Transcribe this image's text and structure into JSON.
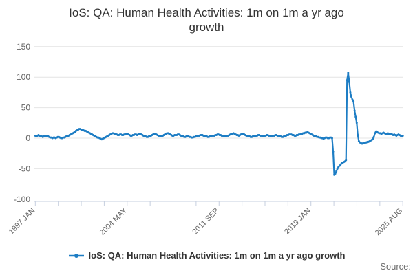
{
  "title_lines": [
    "IoS: QA: Human Health Activities: 1m on 1m a yr ago",
    "growth"
  ],
  "legend": {
    "series_label": "IoS: QA: Human Health Activities: 1m on 1m a yr ago growth"
  },
  "source_label": "Source:",
  "colors": {
    "series_line": "#1d7dc4",
    "grid_line": "#e4e4e4",
    "axis_line": "#c6cfdf",
    "axis_text": "#666666",
    "title_text": "#333333"
  },
  "chart_data": {
    "type": "line",
    "title": "IoS: QA: Human Health Activities: 1m on 1m a yr ago growth",
    "x_start": "1997-01",
    "x_end": "2025-08",
    "frequency": "monthly",
    "x_axis": {
      "tick_count": 17,
      "major_every": 4,
      "tick_labels": [
        "1997 JAN",
        "2004 MAY",
        "2011 SEP",
        "2019 JAN",
        "2025 AUG"
      ]
    },
    "y_axis": {
      "ticks": [
        150,
        100,
        50,
        0,
        -50,
        -100
      ],
      "range": [
        -100,
        150
      ]
    },
    "grid": "horizontal",
    "legend_position": "bottom",
    "values": [
      4,
      3,
      4,
      5,
      4,
      3,
      3,
      2,
      3,
      4,
      3,
      4,
      3,
      2,
      1,
      1,
      0,
      1,
      1,
      0,
      1,
      2,
      2,
      1,
      0,
      0,
      1,
      1,
      2,
      3,
      3,
      4,
      5,
      6,
      7,
      8,
      9,
      10,
      12,
      13,
      14,
      15,
      15,
      14,
      13,
      13,
      12,
      12,
      11,
      10,
      9,
      8,
      7,
      6,
      5,
      4,
      3,
      2,
      1,
      1,
      0,
      -1,
      -2,
      -1,
      0,
      1,
      2,
      3,
      4,
      5,
      6,
      7,
      8,
      8,
      7,
      7,
      6,
      5,
      5,
      6,
      6,
      5,
      5,
      6,
      6,
      7,
      7,
      6,
      5,
      4,
      4,
      5,
      5,
      6,
      6,
      5,
      6,
      7,
      7,
      6,
      5,
      4,
      3,
      3,
      2,
      2,
      3,
      3,
      4,
      5,
      6,
      7,
      7,
      6,
      5,
      4,
      4,
      3,
      3,
      4,
      5,
      6,
      7,
      8,
      8,
      7,
      6,
      5,
      4,
      4,
      5,
      5,
      5,
      6,
      6,
      5,
      4,
      3,
      3,
      2,
      2,
      3,
      3,
      3,
      2,
      2,
      1,
      1,
      2,
      2,
      3,
      3,
      4,
      4,
      5,
      5,
      5,
      4,
      4,
      3,
      3,
      2,
      2,
      3,
      3,
      4,
      4,
      4,
      5,
      5,
      6,
      6,
      5,
      5,
      4,
      4,
      3,
      3,
      3,
      4,
      4,
      5,
      6,
      7,
      7,
      8,
      7,
      6,
      5,
      5,
      4,
      5,
      6,
      7,
      7,
      6,
      5,
      4,
      4,
      3,
      3,
      2,
      2,
      3,
      3,
      3,
      4,
      4,
      5,
      5,
      4,
      4,
      3,
      3,
      4,
      4,
      5,
      5,
      4,
      4,
      3,
      3,
      4,
      4,
      5,
      5,
      4,
      4,
      3,
      3,
      2,
      2,
      3,
      3,
      4,
      5,
      5,
      6,
      6,
      6,
      5,
      5,
      4,
      4,
      5,
      5,
      6,
      6,
      7,
      7,
      8,
      8,
      9,
      9,
      10,
      9,
      8,
      7,
      6,
      5,
      4,
      3,
      3,
      2,
      2,
      1,
      1,
      0,
      0,
      -1,
      0,
      1,
      1,
      0,
      0,
      1,
      1,
      0,
      -22,
      -60,
      -58,
      -54,
      -50,
      -47,
      -45,
      -43,
      -41,
      -40,
      -39,
      -38,
      -36,
      95,
      107,
      93,
      75,
      68,
      63,
      60,
      45,
      35,
      25,
      5,
      -5,
      -7,
      -8,
      -9,
      -8,
      -8,
      -7,
      -7,
      -6,
      -6,
      -5,
      -4,
      -3,
      -1,
      2,
      8,
      11,
      10,
      9,
      8,
      8,
      7,
      8,
      9,
      8,
      7,
      7,
      8,
      7,
      6,
      7,
      6,
      5,
      6,
      5,
      4,
      5,
      6,
      5,
      4,
      3,
      4
    ]
  }
}
